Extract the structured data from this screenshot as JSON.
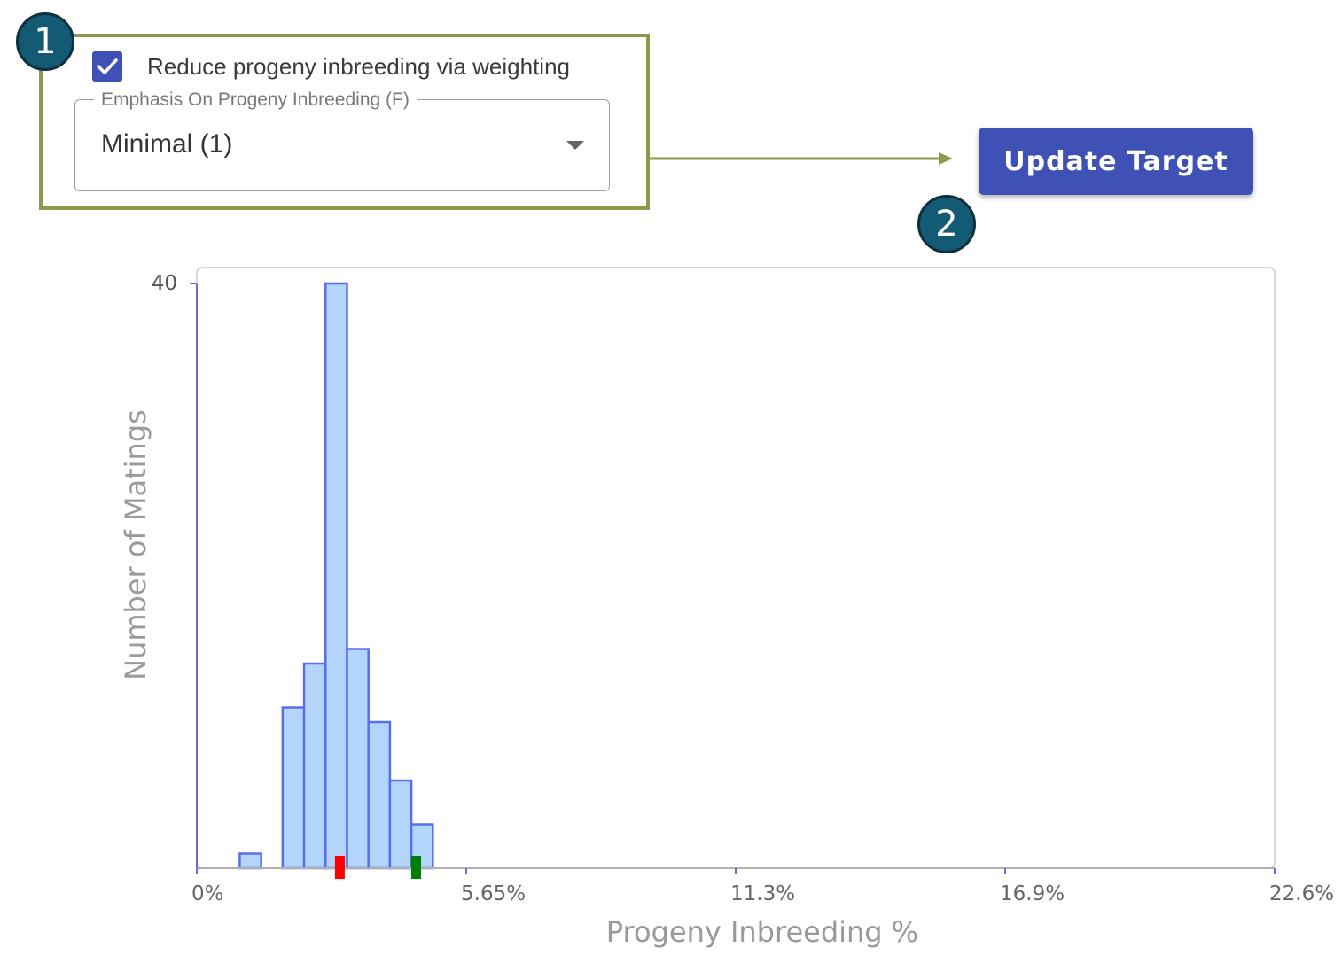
{
  "annotations": {
    "step1": "1",
    "step2": "2"
  },
  "inbreeding_panel": {
    "checkbox_label": "Reduce progeny inbreeding via weighting",
    "checkbox_checked": true,
    "select_label": "Emphasis On Progeny Inbreeding (F)",
    "select_value": "Minimal (1)"
  },
  "update_button": {
    "label": "Update Target"
  },
  "colors": {
    "accent": "#3f51b5",
    "badge": "#135a75",
    "highlight_border": "#8a9b4e",
    "bar_fill": "#b3d4fb",
    "bar_stroke": "#5a6cf0",
    "marker_red": "#ff0000",
    "marker_green": "#008000"
  },
  "chart_data": {
    "type": "bar",
    "xlabel": "Progeny Inbreeding %",
    "ylabel": "Number of Matings",
    "x_ticks": [
      "0%",
      "5.65%",
      "11.3%",
      "16.9%",
      "22.6%"
    ],
    "y_ticks": [
      "40"
    ],
    "xlim": [
      0,
      22.6
    ],
    "ylim": [
      0,
      40
    ],
    "bin_width": 0.45,
    "bins": [
      {
        "start": 0.9,
        "count": 1
      },
      {
        "start": 1.8,
        "count": 11
      },
      {
        "start": 2.25,
        "count": 14
      },
      {
        "start": 2.7,
        "count": 40
      },
      {
        "start": 3.15,
        "count": 15
      },
      {
        "start": 3.6,
        "count": 10
      },
      {
        "start": 4.05,
        "count": 6
      },
      {
        "start": 4.5,
        "count": 3
      }
    ],
    "markers": [
      {
        "x": 3.0,
        "color": "red"
      },
      {
        "x": 4.6,
        "color": "green"
      }
    ],
    "grid": false
  }
}
